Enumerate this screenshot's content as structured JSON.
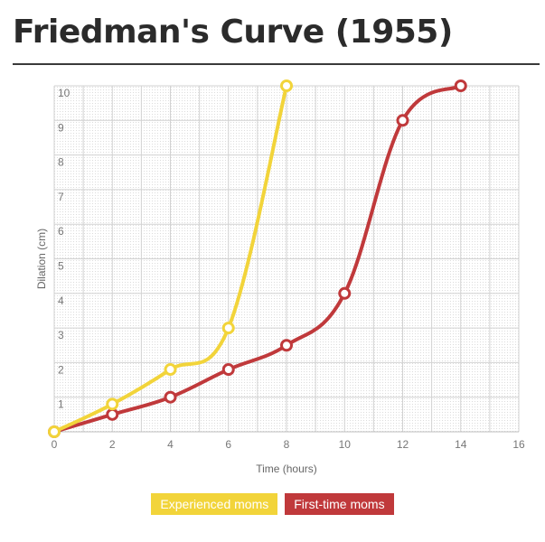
{
  "page": {
    "title": "Friedman's Curve (1955)"
  },
  "chart_data": {
    "type": "line",
    "title": "Friedman's Curve (1955)",
    "xlabel": "Time (hours)",
    "ylabel": "Dilation (cm)",
    "xlim": [
      0,
      16
    ],
    "ylim": [
      0,
      10
    ],
    "xticks": [
      0,
      2,
      4,
      6,
      8,
      10,
      12,
      14,
      16
    ],
    "yticks": [
      1,
      2,
      3,
      4,
      5,
      6,
      7,
      8,
      9,
      10
    ],
    "grid": true,
    "legend_position": "bottom-center",
    "series": [
      {
        "name": "Experienced moms",
        "color": "#f2d43a",
        "x": [
          0,
          2,
          4,
          6,
          8
        ],
        "y": [
          0,
          0.8,
          1.8,
          3,
          10
        ]
      },
      {
        "name": "First-time moms",
        "color": "#c0393b",
        "x": [
          0,
          2,
          4,
          6,
          8,
          10,
          12,
          14
        ],
        "y": [
          0,
          0.5,
          1,
          1.8,
          2.5,
          4,
          9,
          10
        ]
      }
    ]
  }
}
